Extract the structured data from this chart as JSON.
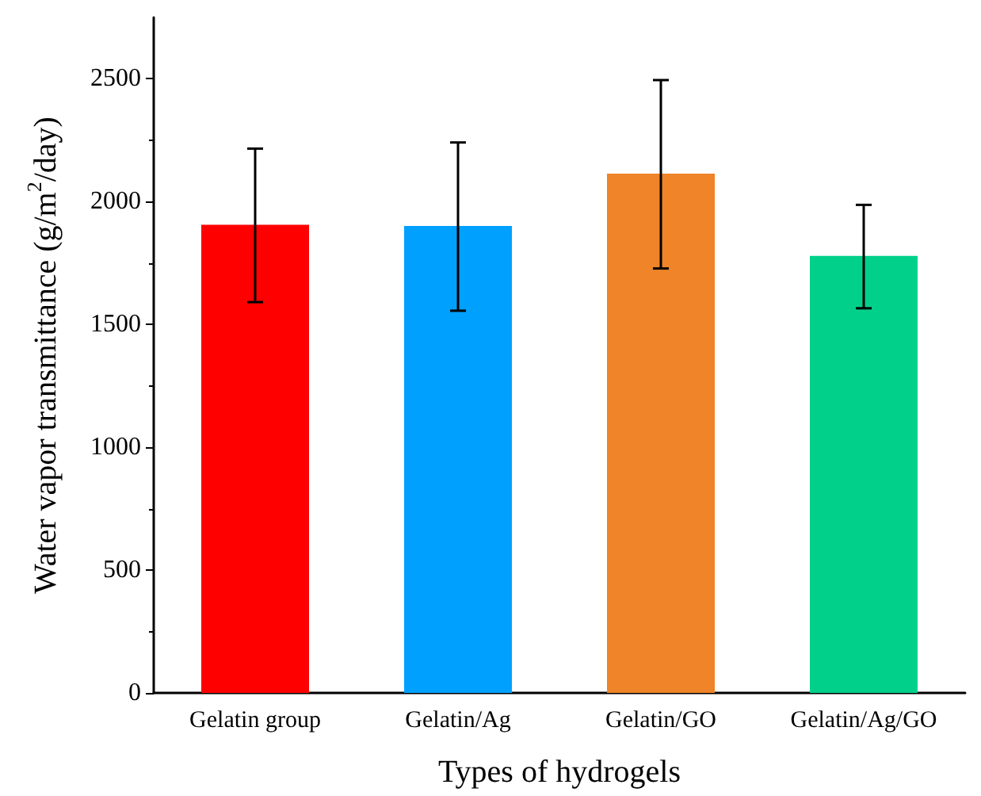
{
  "chart_data": {
    "type": "bar",
    "xlabel": "Types of hydrogels",
    "ylabel": "Water vapor transmittance (g/m$^{2}$/day)",
    "categories": [
      "Gelatin group",
      "Gelatin/Ag",
      "Gelatin/GO",
      "Gelatin/Ag/GO"
    ],
    "values": [
      1906,
      1901,
      2114,
      1779
    ],
    "colors": [
      "#fe0000",
      "#00a0fe",
      "#ef8429",
      "#00d08a"
    ],
    "errors": [
      [
        1591,
        2216
      ],
      [
        1556,
        2241
      ],
      [
        1728,
        2495
      ],
      [
        1566,
        1987
      ]
    ],
    "ylim": [
      0,
      2750
    ],
    "yticks": [
      0,
      500,
      1000,
      1500,
      2000,
      2500
    ],
    "grid": false
  }
}
